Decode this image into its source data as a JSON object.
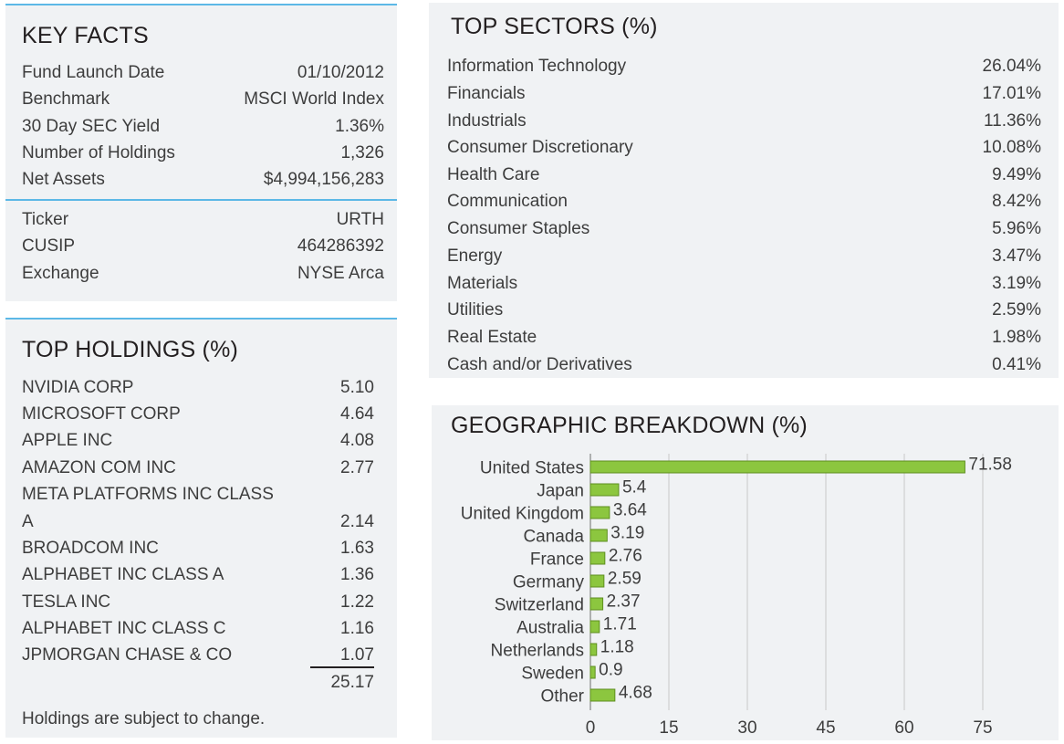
{
  "key_facts": {
    "title": "KEY FACTS",
    "rows": [
      {
        "label": "Fund Launch Date",
        "value": "01/10/2012"
      },
      {
        "label": "Benchmark",
        "value": "MSCI World Index"
      },
      {
        "label": "30 Day SEC Yield",
        "value": "1.36%"
      },
      {
        "label": "Number of Holdings",
        "value": "1,326"
      },
      {
        "label": "Net Assets",
        "value": "$4,994,156,283"
      },
      {
        "label": "Ticker",
        "value": "URTH"
      },
      {
        "label": "CUSIP",
        "value": "464286392"
      },
      {
        "label": "Exchange",
        "value": "NYSE Arca"
      }
    ]
  },
  "top_holdings": {
    "title": "TOP HOLDINGS (%)",
    "rows": [
      {
        "name": "NVIDIA CORP",
        "value": "5.10"
      },
      {
        "name": "MICROSOFT CORP",
        "value": "4.64"
      },
      {
        "name": "APPLE INC",
        "value": "4.08"
      },
      {
        "name": "AMAZON COM INC",
        "value": "2.77"
      },
      {
        "name": "META PLATFORMS INC CLASS",
        "value": ""
      },
      {
        "name": "A",
        "value": "2.14"
      },
      {
        "name": "BROADCOM INC",
        "value": "1.63"
      },
      {
        "name": "ALPHABET INC CLASS A",
        "value": "1.36"
      },
      {
        "name": "TESLA INC",
        "value": "1.22"
      },
      {
        "name": "ALPHABET INC CLASS C",
        "value": "1.16"
      },
      {
        "name": "JPMORGAN CHASE & CO",
        "value": "1.07"
      }
    ],
    "total": "25.17",
    "footnote": "Holdings are subject to change."
  },
  "top_sectors": {
    "title": "TOP SECTORS (%)",
    "rows": [
      {
        "name": "Information Technology",
        "value": "26.04%"
      },
      {
        "name": "Financials",
        "value": "17.01%"
      },
      {
        "name": "Industrials",
        "value": "11.36%"
      },
      {
        "name": "Consumer Discretionary",
        "value": "10.08%"
      },
      {
        "name": "Health Care",
        "value": "9.49%"
      },
      {
        "name": "Communication",
        "value": "8.42%"
      },
      {
        "name": "Consumer Staples",
        "value": "5.96%"
      },
      {
        "name": "Energy",
        "value": "3.47%"
      },
      {
        "name": "Materials",
        "value": "3.19%"
      },
      {
        "name": "Utilities",
        "value": "2.59%"
      },
      {
        "name": "Real Estate",
        "value": "1.98%"
      },
      {
        "name": "Cash and/or Derivatives",
        "value": "0.41%"
      }
    ]
  },
  "geographic": {
    "title": "GEOGRAPHIC BREAKDOWN (%)"
  },
  "chart_data": {
    "type": "bar",
    "orientation": "horizontal",
    "title": "GEOGRAPHIC BREAKDOWN (%)",
    "categories": [
      "United States",
      "Japan",
      "United Kingdom",
      "Canada",
      "France",
      "Germany",
      "Switzerland",
      "Australia",
      "Netherlands",
      "Sweden",
      "Other"
    ],
    "values": [
      71.58,
      5.4,
      3.64,
      3.19,
      2.76,
      2.59,
      2.37,
      1.71,
      1.18,
      0.9,
      4.68
    ],
    "value_labels": [
      "71.58",
      "5.4",
      "3.64",
      "3.19",
      "2.76",
      "2.59",
      "2.37",
      "1.71",
      "1.18",
      "0.9",
      "4.68"
    ],
    "xticks": [
      0,
      15,
      30,
      45,
      60,
      75
    ],
    "xlim": [
      0,
      75
    ],
    "grid": "vertical",
    "bar_color": "#8cc63f",
    "bar_edge_color": "#5e8f1f"
  }
}
